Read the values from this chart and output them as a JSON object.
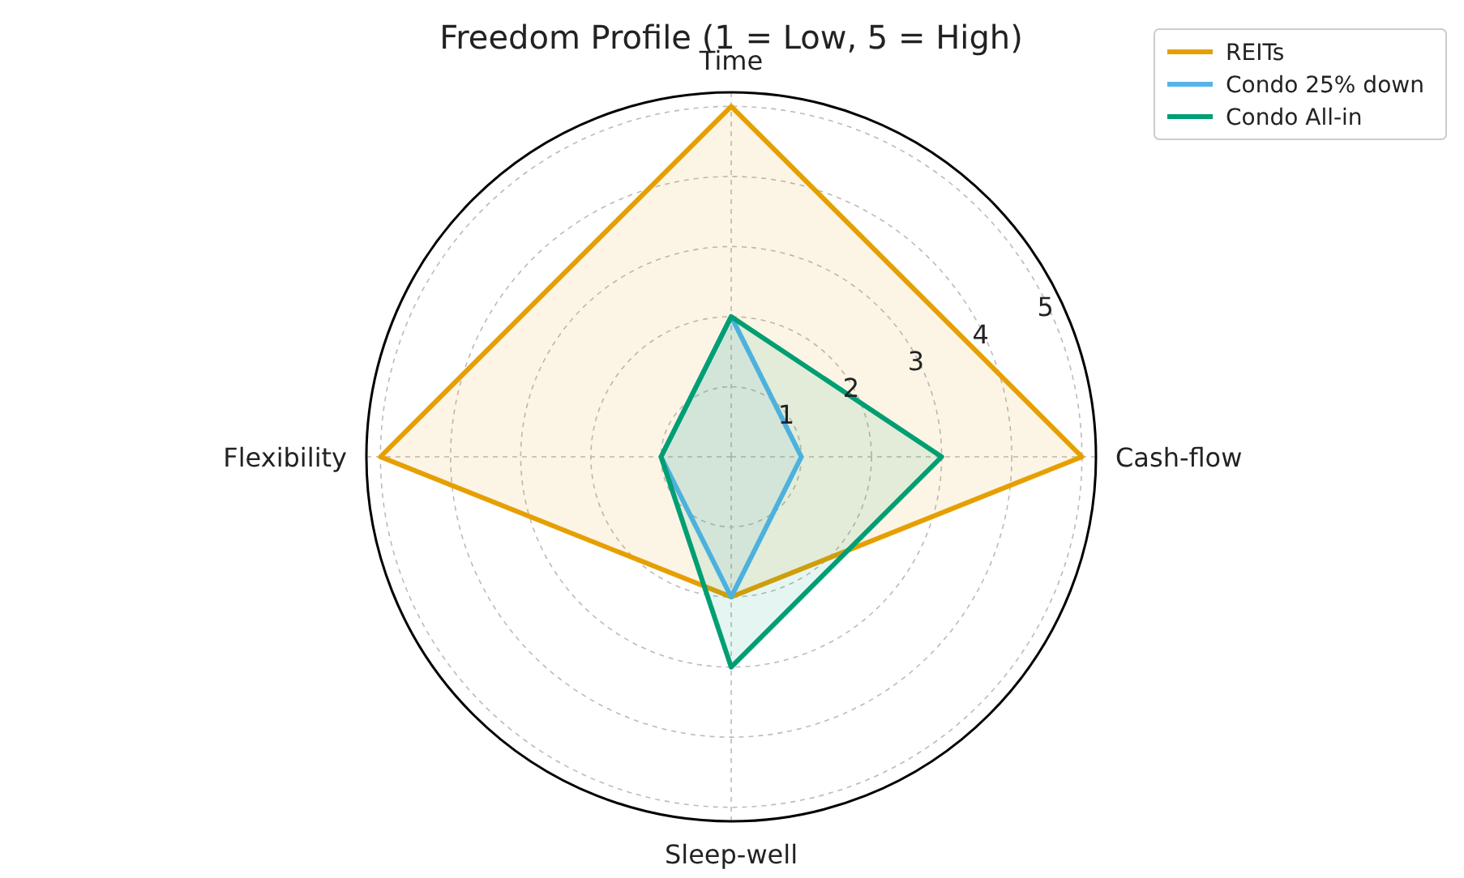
{
  "chart_data": {
    "type": "radar",
    "title": "Freedom Profile (1 = Low, 5 = High)",
    "categories": [
      "Time",
      "Cash-flow",
      "Sleep-well",
      "Flexibility"
    ],
    "series": [
      {
        "name": "REITs",
        "color": "#e69f00",
        "values": [
          5,
          5,
          2,
          5
        ]
      },
      {
        "name": "Condo 25% down",
        "color": "#56b4e9",
        "values": [
          2,
          1,
          2,
          1
        ]
      },
      {
        "name": "Condo All-in",
        "color": "#009e73",
        "values": [
          2,
          3,
          3,
          1
        ]
      }
    ],
    "ylim": [
      0,
      5.2
    ],
    "yticks": [
      1,
      2,
      3,
      4,
      5
    ],
    "grid": true,
    "legend": "top right"
  }
}
